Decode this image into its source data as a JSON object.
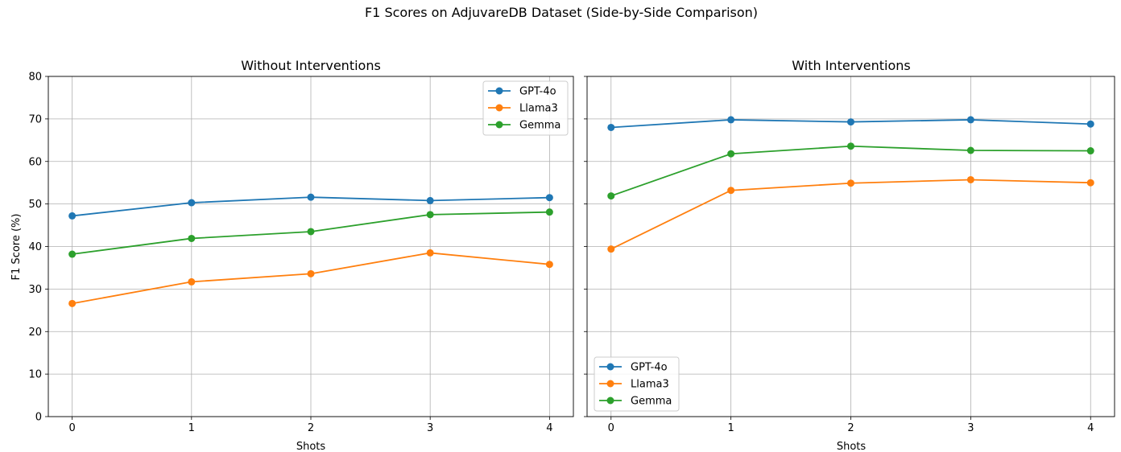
{
  "suptitle": "F1 Scores on AdjuvareDB Dataset (Side-by-Side Comparison)",
  "colors": {
    "GPT-4o": "#1f77b4",
    "Llama3": "#ff7f0e",
    "Gemma": "#2ca02c"
  },
  "chart_data": [
    {
      "type": "line",
      "title": "Without Interventions",
      "xlabel": "Shots",
      "ylabel": "F1 Score (%)",
      "x": [
        0,
        1,
        2,
        3,
        4
      ],
      "xticks": [
        "0",
        "1",
        "2",
        "3",
        "4"
      ],
      "yticks": [
        "0",
        "10",
        "20",
        "30",
        "40",
        "50",
        "60",
        "70",
        "80"
      ],
      "xlim": [
        -0.2,
        4.2
      ],
      "ylim": [
        0,
        80
      ],
      "grid": true,
      "legend": "top-right",
      "series": [
        {
          "name": "GPT-4o",
          "values": [
            47.2,
            50.3,
            51.6,
            50.8,
            51.5
          ]
        },
        {
          "name": "Llama3",
          "values": [
            26.6,
            31.7,
            33.6,
            38.5,
            35.8
          ]
        },
        {
          "name": "Gemma",
          "values": [
            38.2,
            41.9,
            43.5,
            47.5,
            48.1
          ]
        }
      ]
    },
    {
      "type": "line",
      "title": "With Interventions",
      "xlabel": "Shots",
      "ylabel": "",
      "x": [
        0,
        1,
        2,
        3,
        4
      ],
      "xticks": [
        "0",
        "1",
        "2",
        "3",
        "4"
      ],
      "yticks": [],
      "xlim": [
        -0.2,
        4.2
      ],
      "ylim": [
        0,
        80
      ],
      "grid": true,
      "legend": "bottom-left",
      "series": [
        {
          "name": "GPT-4o",
          "values": [
            68.0,
            69.8,
            69.3,
            69.8,
            68.8
          ]
        },
        {
          "name": "Llama3",
          "values": [
            39.4,
            53.2,
            54.9,
            55.7,
            55.0
          ]
        },
        {
          "name": "Gemma",
          "values": [
            51.9,
            61.8,
            63.6,
            62.6,
            62.5
          ]
        }
      ]
    }
  ]
}
